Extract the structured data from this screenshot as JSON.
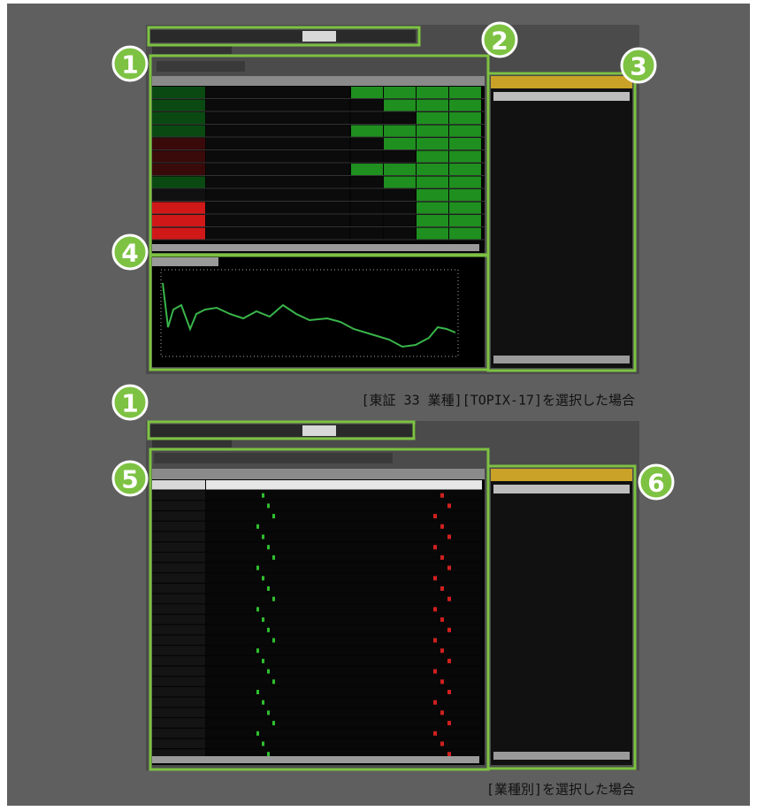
{
  "callouts": [
    "1",
    "2",
    "3",
    "4",
    "1",
    "5",
    "6"
  ],
  "captions": [
    "[東証 33 業種][TOPIX-17]を選択した場合",
    "[業種別]を選択した場合"
  ]
}
